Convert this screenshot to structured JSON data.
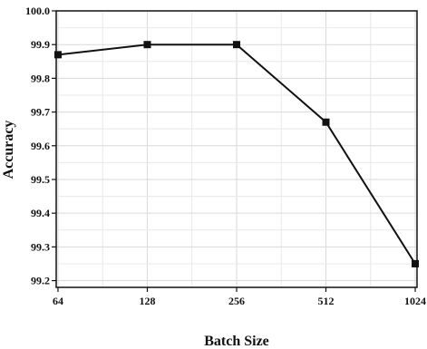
{
  "chart_data": {
    "type": "line",
    "title": "",
    "xlabel": "Batch Size",
    "ylabel": "Accuracy",
    "x_scale": "log2",
    "x": [
      64,
      128,
      256,
      512,
      1024
    ],
    "x_tick_labels": [
      "64",
      "128",
      "256",
      "512",
      "1024"
    ],
    "y_tick_labels": [
      "99.2",
      "99.3",
      "99.4",
      "99.5",
      "99.6",
      "99.7",
      "99.8",
      "99.9",
      "100.0"
    ],
    "ylim": [
      99.18,
      100.0
    ],
    "grid": true,
    "legend": "none",
    "series": [
      {
        "values": [
          99.87,
          99.9,
          99.9,
          99.67,
          99.25
        ],
        "color": "#111111",
        "marker": "square"
      }
    ]
  }
}
